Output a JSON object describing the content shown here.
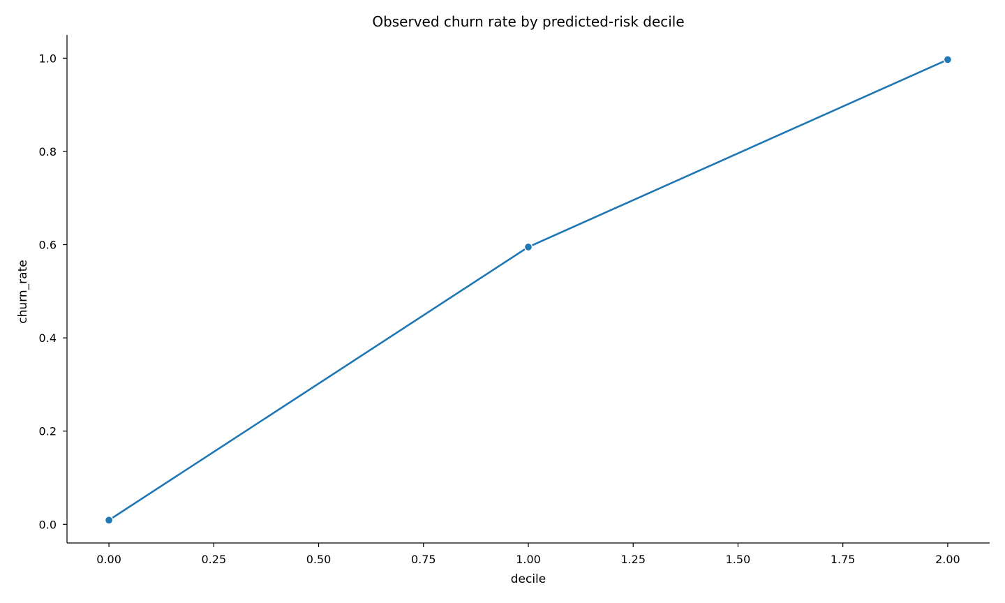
{
  "chart_data": {
    "type": "line",
    "title": "Observed churn rate by predicted-risk decile",
    "xlabel": "decile",
    "ylabel": "churn_rate",
    "xlim": [
      -0.1,
      2.1
    ],
    "ylim": [
      -0.04,
      1.05
    ],
    "x_ticks": [
      0.0,
      0.25,
      0.5,
      0.75,
      1.0,
      1.25,
      1.5,
      1.75,
      2.0
    ],
    "x_tick_labels": [
      "0.00",
      "0.25",
      "0.50",
      "0.75",
      "1.00",
      "1.25",
      "1.50",
      "1.75",
      "2.00"
    ],
    "y_ticks": [
      0.0,
      0.2,
      0.4,
      0.6,
      0.8,
      1.0
    ],
    "y_tick_labels": [
      "0.0",
      "0.2",
      "0.4",
      "0.6",
      "0.8",
      "1.0"
    ],
    "grid": false,
    "series": [
      {
        "name": "churn_rate",
        "color": "#1f77b4",
        "x": [
          0,
          1,
          2
        ],
        "y": [
          0.009,
          0.595,
          0.997
        ]
      }
    ]
  }
}
